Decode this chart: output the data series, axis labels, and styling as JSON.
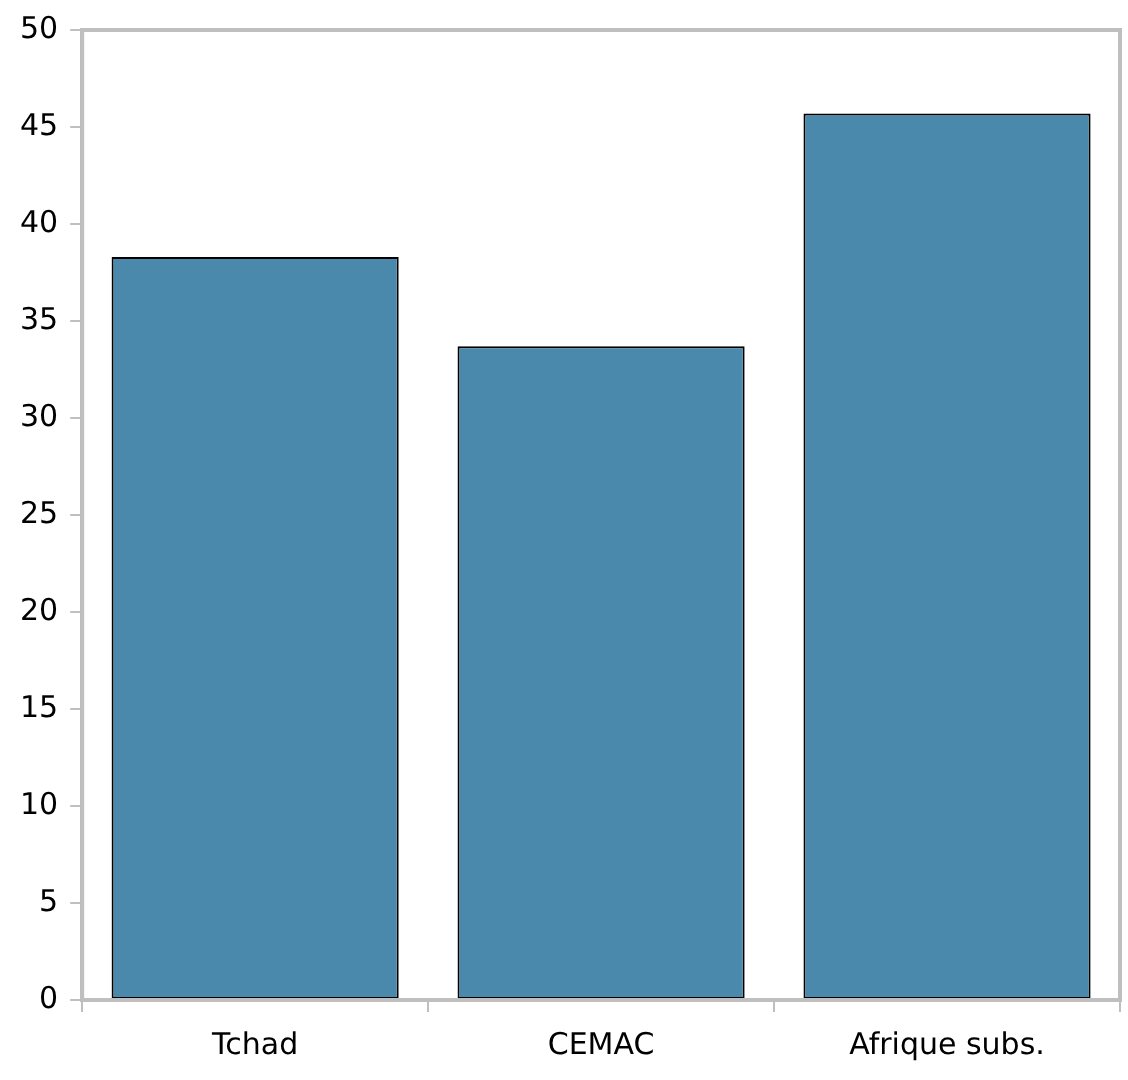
{
  "chart_data": {
    "type": "bar",
    "categories": [
      "Tchad",
      "CEMAC",
      "Afrique subs."
    ],
    "values": [
      38.3,
      33.7,
      45.7
    ],
    "color": "#4a89ab",
    "ylim": [
      0,
      50
    ],
    "yticks": [
      0,
      5,
      10,
      15,
      20,
      25,
      30,
      35,
      40,
      45,
      50
    ],
    "grid": false,
    "legend": false
  }
}
